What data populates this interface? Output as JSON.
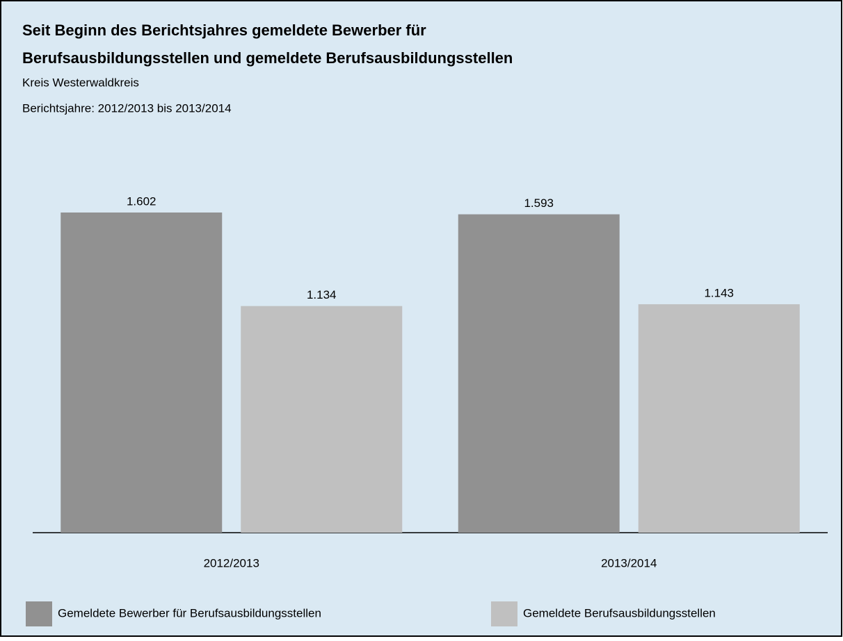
{
  "chart_data": {
    "type": "bar",
    "title": [
      "Seit Beginn des Berichtsjahres gemeldete Bewerber für",
      "Berufsausbildungsstellen und gemeldete Berufsausbildungsstellen"
    ],
    "subtitle": [
      "Kreis Westerwaldkreis",
      "Berichtsjahre: 2012/2013 bis 2013/2014"
    ],
    "categories": [
      "2012/2013",
      "2013/2014"
    ],
    "series": [
      {
        "name": "Gemeldete Bewerber für Berufsausbildungsstellen",
        "color": "#919191",
        "values": [
          1602,
          1593
        ],
        "value_labels": [
          "1.602",
          "1.593"
        ]
      },
      {
        "name": "Gemeldete Berufsausbildungsstellen",
        "color": "#c0c0c0",
        "values": [
          1134,
          1143
        ],
        "value_labels": [
          "1.134",
          "1.143"
        ]
      }
    ]
  }
}
